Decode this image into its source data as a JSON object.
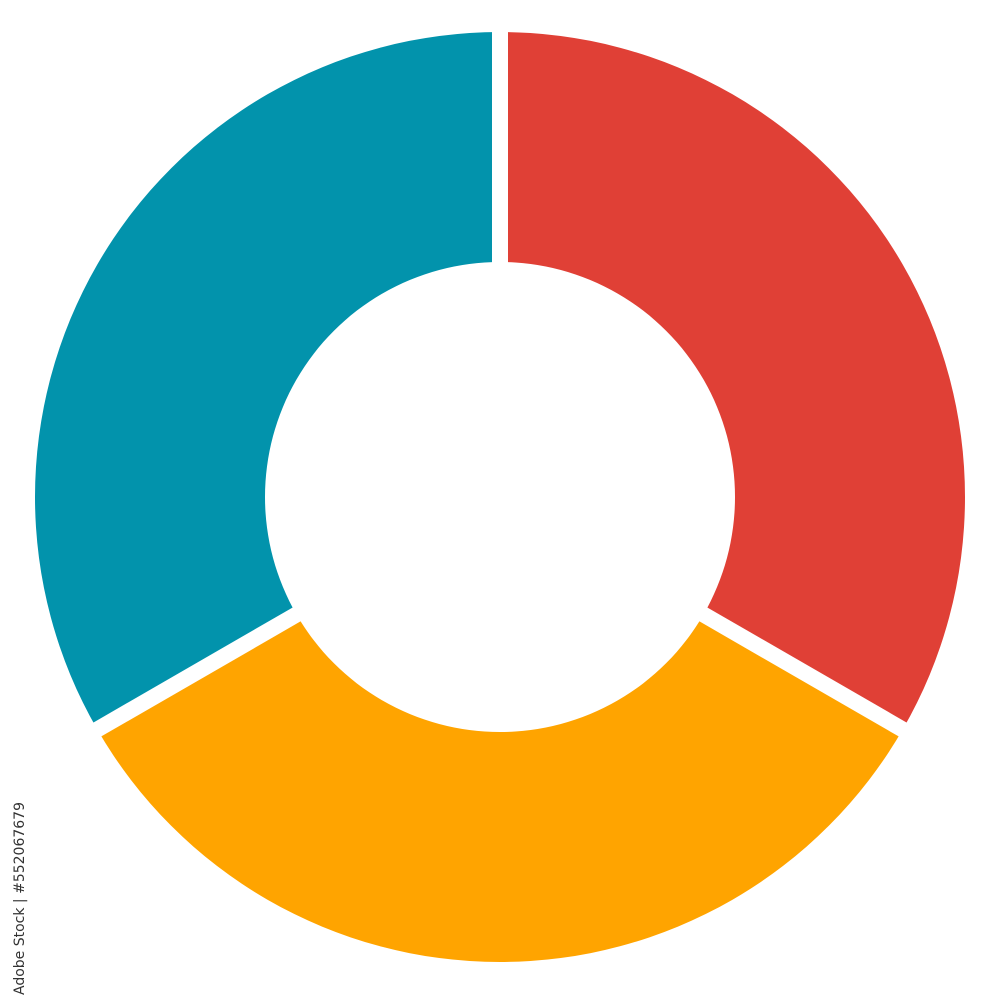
{
  "chart_data": {
    "type": "pie",
    "donut": true,
    "title": "",
    "start_angle_deg": 0,
    "direction": "clockwise",
    "slices": [
      {
        "value": 1,
        "color": "#E04036"
      },
      {
        "value": 1,
        "color": "#FFA400"
      },
      {
        "value": 1,
        "color": "#0293AC"
      }
    ],
    "legend": "none"
  },
  "watermark": {
    "text": "Adobe Stock | #552067679"
  }
}
